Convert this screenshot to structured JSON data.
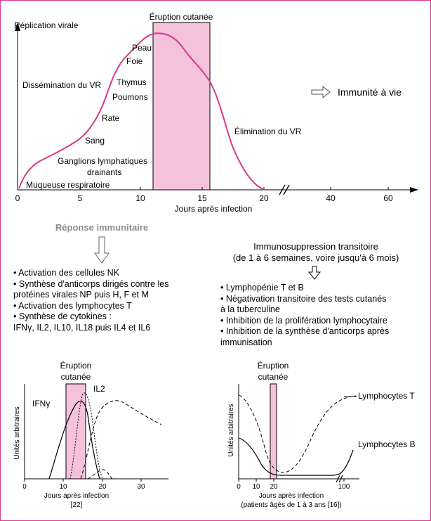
{
  "main_chart": {
    "ylabel": "Réplication virale",
    "xlabel": "Jours après infection",
    "ticks": [
      "0",
      "5",
      "10",
      "15",
      "20",
      "40",
      "60"
    ],
    "rash_label": "Éruption cutanée",
    "stages": [
      "Peau",
      "Foie",
      "Thymus",
      "Poumons",
      "Rate",
      "Sang",
      "Ganglions lymphatiques",
      "drainants",
      "Muqueuse respiratoire"
    ],
    "dissemination": "Dissémination du VR",
    "elimination": "Élimination du VR",
    "immunity": "Immunité à vie"
  },
  "immune_response": {
    "title": "Réponse immunitaire",
    "items": [
      "Activation des cellules NK",
      "Synthèse d'anticorps dirigés contre les",
      "protéines virales NP puis H, F et M",
      "Activation des lymphocytes T",
      "Synthèse de cytokines :",
      "IFNγ, IL2, IL10, IL18 puis IL4 et IL6"
    ]
  },
  "immunosuppression": {
    "title_line1": "Immunosuppression transitoire",
    "title_line2": "(de 1 à 6 semaines, voire jusqu'à 6 mois)",
    "items": [
      "Lymphopénie T et B",
      "Négativation transitoire des tests cutanés",
      "à la tuberculine",
      "Inhibition de la prolifération lymphocytaire",
      "Inhibition de la synthèse d'anticorps après",
      "immunisation"
    ]
  },
  "cytokine_chart": {
    "rash_line1": "Éruption",
    "rash_line2": "cutanée",
    "ylabel": "Unités arbitraires",
    "series": [
      "IFNγ",
      "IL2"
    ],
    "ticks": [
      "0",
      "10",
      "20",
      "30"
    ],
    "xlabel": "Jours après infection",
    "ref": "[22]"
  },
  "lymphocyte_chart": {
    "rash_line1": "Éruption",
    "rash_line2": "cutanée",
    "ylabel": "Unités arbitraires",
    "series": [
      "Lymphocytes T",
      "Lymphocytes B"
    ],
    "ticks": [
      "0",
      "10",
      "20",
      "100"
    ],
    "xlabel": "Jours après infection",
    "note": "(patients âgés de 1 à 3 ans [16])"
  },
  "colors": {
    "accent": "#d83a8c",
    "rash_fill": "#f5c2dc"
  }
}
